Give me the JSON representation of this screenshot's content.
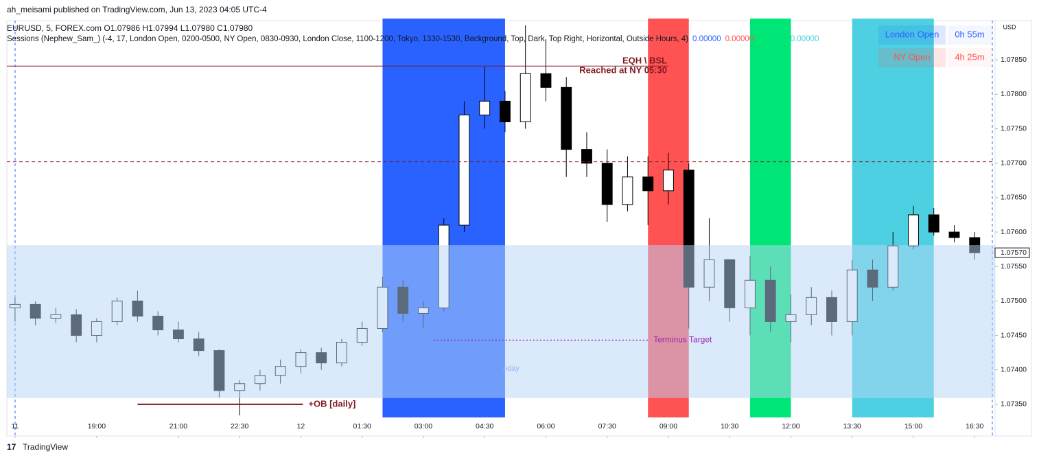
{
  "publisher": "ah_meisami published on TradingView.com, Jun 13, 2023 04:05 UTC-4",
  "footer": "TradingView",
  "chart_data": {
    "type": "candlestick",
    "title": "EURUSD, 5, FOREX.com  O1.07986  H1.07994  L1.07980  C1.07980",
    "indicator": "Sessions (Nephew_Sam_) (-4, 17, London Open, 0200-0500, NY Open, 0830-0930, London Close, 1100-1200, Tokyo, 1330-1530, Background, Top, Dark, Top Right, Horizontal, Outside Hours, 4)",
    "indicator_values": [
      {
        "text": "0.00000",
        "color": "#2962ff"
      },
      {
        "text": "0.00000",
        "color": "#ff5252"
      },
      {
        "text": "0.00000",
        "color": "#00e676"
      },
      {
        "text": "0.00000",
        "color": "#4dd0e1"
      },
      {
        "text": "0.00000",
        "color": "#ffffff"
      }
    ],
    "currency": "USD",
    "xlim": [
      -7.2,
      17.0
    ],
    "xticks": [
      {
        "value": -7,
        "label": "11"
      },
      {
        "value": -5,
        "label": "19:00"
      },
      {
        "value": -3,
        "label": "21:00"
      },
      {
        "value": -1.5,
        "label": "22:30"
      },
      {
        "value": 0,
        "label": "12"
      },
      {
        "value": 1.5,
        "label": "01:30"
      },
      {
        "value": 3,
        "label": "03:00"
      },
      {
        "value": 4.5,
        "label": "04:30"
      },
      {
        "value": 6,
        "label": "06:00"
      },
      {
        "value": 7.5,
        "label": "07:30"
      },
      {
        "value": 9,
        "label": "09:00"
      },
      {
        "value": 10.5,
        "label": "10:30"
      },
      {
        "value": 12,
        "label": "12:00"
      },
      {
        "value": 13.5,
        "label": "13:30"
      },
      {
        "value": 15,
        "label": "15:00"
      },
      {
        "value": 16.5,
        "label": "16:30"
      }
    ],
    "ylim": [
      1.07304,
      1.07907
    ],
    "yticks": [
      {
        "value": 1.0735,
        "label": "1.07350"
      },
      {
        "value": 1.074,
        "label": "1.07400"
      },
      {
        "value": 1.0745,
        "label": "1.07450"
      },
      {
        "value": 1.075,
        "label": "1.07500"
      },
      {
        "value": 1.0755,
        "label": "1.07550"
      },
      {
        "value": 1.076,
        "label": "1.07600"
      },
      {
        "value": 1.0765,
        "label": "1.07650"
      },
      {
        "value": 1.077,
        "label": "1.07700"
      },
      {
        "value": 1.0775,
        "label": "1.07750"
      },
      {
        "value": 1.078,
        "label": "1.07800"
      },
      {
        "value": 1.0785,
        "label": "1.07850"
      }
    ],
    "last_price": {
      "value": 1.0757,
      "label": "1.07570"
    },
    "up_color": "#ffffff",
    "down_color": "#000000",
    "x": [
      -7,
      -6.5,
      -6,
      -5.5,
      -5,
      -4.5,
      -4,
      -3.5,
      -3,
      -2.5,
      -2,
      -1.5,
      -1,
      -0.5,
      0,
      0.5,
      1,
      1.5,
      2,
      2.5,
      3,
      3.5,
      4,
      4.5,
      5,
      5.5,
      6,
      6.5,
      7,
      7.5,
      8,
      8.5,
      9,
      9.5,
      10,
      10.5,
      11,
      11.5,
      12,
      12.5,
      13,
      13.5,
      14,
      14.5,
      15,
      15.5,
      16,
      16.5
    ],
    "open": [
      1.0749,
      1.07495,
      1.07475,
      1.0748,
      1.0745,
      1.0747,
      1.075,
      1.07478,
      1.07458,
      1.07445,
      1.07428,
      1.0737,
      1.0738,
      1.07392,
      1.07405,
      1.07425,
      1.0741,
      1.0744,
      1.0746,
      1.0752,
      1.07482,
      1.0749,
      1.0761,
      1.0777,
      1.0779,
      1.0776,
      1.0783,
      1.0781,
      1.0772,
      1.077,
      1.0764,
      1.0768,
      1.0766,
      1.0769,
      1.0752,
      1.0756,
      1.0749,
      1.0753,
      1.0747,
      1.0748,
      1.07505,
      1.0747,
      1.07545,
      1.0752,
      1.0758,
      1.07625,
      1.076,
      1.07592
    ],
    "high": [
      1.07505,
      1.075,
      1.0749,
      1.07488,
      1.07475,
      1.07505,
      1.07515,
      1.07485,
      1.0747,
      1.07455,
      1.0743,
      1.07385,
      1.074,
      1.07415,
      1.0743,
      1.07432,
      1.07445,
      1.0747,
      1.07535,
      1.0753,
      1.075,
      1.0762,
      1.0779,
      1.0784,
      1.07805,
      1.079,
      1.0788,
      1.07825,
      1.07745,
      1.0772,
      1.0771,
      1.0771,
      1.07715,
      1.077,
      1.0762,
      1.0756,
      1.07565,
      1.0755,
      1.0751,
      1.0752,
      1.07515,
      1.0756,
      1.0756,
      1.076,
      1.07638,
      1.07635,
      1.0761,
      1.076
    ],
    "low": [
      1.0747,
      1.07465,
      1.07468,
      1.0744,
      1.0744,
      1.07465,
      1.0747,
      1.0745,
      1.0744,
      1.0742,
      1.0736,
      1.07334,
      1.0737,
      1.0738,
      1.07395,
      1.074,
      1.07405,
      1.07435,
      1.07455,
      1.0747,
      1.0746,
      1.07485,
      1.076,
      1.0775,
      1.07745,
      1.0775,
      1.0779,
      1.0768,
      1.0768,
      1.07615,
      1.0763,
      1.0761,
      1.0764,
      1.0746,
      1.075,
      1.0747,
      1.0745,
      1.07455,
      1.0744,
      1.07465,
      1.0745,
      1.0745,
      1.075,
      1.07515,
      1.07575,
      1.07595,
      1.07585,
      1.0756
    ],
    "close": [
      1.07495,
      1.07475,
      1.0748,
      1.0745,
      1.0747,
      1.075,
      1.07478,
      1.07458,
      1.07445,
      1.07428,
      1.0737,
      1.0738,
      1.07392,
      1.07405,
      1.07425,
      1.0741,
      1.0744,
      1.0746,
      1.0752,
      1.07482,
      1.0749,
      1.0761,
      1.0777,
      1.0779,
      1.0776,
      1.0783,
      1.0781,
      1.0772,
      1.077,
      1.0764,
      1.0768,
      1.0766,
      1.0769,
      1.0752,
      1.0756,
      1.0749,
      1.0753,
      1.0747,
      1.0748,
      1.07505,
      1.0747,
      1.07545,
      1.0752,
      1.0758,
      1.07625,
      1.076,
      1.07592,
      1.0757
    ],
    "sessions": [
      {
        "start": 2,
        "end": 5,
        "color": "#2962ff"
      },
      {
        "start": 8.5,
        "end": 9.5,
        "color": "#ff5252"
      },
      {
        "start": 11,
        "end": 12,
        "color": "#00e676"
      },
      {
        "start": 13.5,
        "end": 15.5,
        "color": "#4dd0e1"
      }
    ],
    "zone": {
      "low": 1.07359,
      "high": 1.07581,
      "color": "#b8d6f7"
    },
    "levels": [
      {
        "labels": [
          "EQH \\ BSL",
          "Reached at NY 05:30"
        ],
        "value": 1.07841,
        "start": -7.2,
        "end": 9.0,
        "style": "solid",
        "color": "#801922"
      },
      {
        "value": 1.07702,
        "start": -7.2,
        "end": 17.0,
        "style": "dashed",
        "color": "#801922"
      },
      {
        "labels": [
          "+OB [daily]"
        ],
        "value": 1.0735,
        "start": -4.0,
        "end": 0.05,
        "style": "thick",
        "color": "#801922"
      },
      {
        "labels": [
          "Terminus Target"
        ],
        "value": 1.07443,
        "start": 3.25,
        "end": 8.5,
        "style": "dotted",
        "color": "#9c27b0"
      }
    ],
    "annotation": "nday",
    "table": [
      {
        "name": "London Open",
        "value": "0h 55m",
        "color": "#2962ff"
      },
      {
        "name": "NY Open",
        "value": "4h 25m",
        "color": "#ff5252"
      }
    ]
  }
}
